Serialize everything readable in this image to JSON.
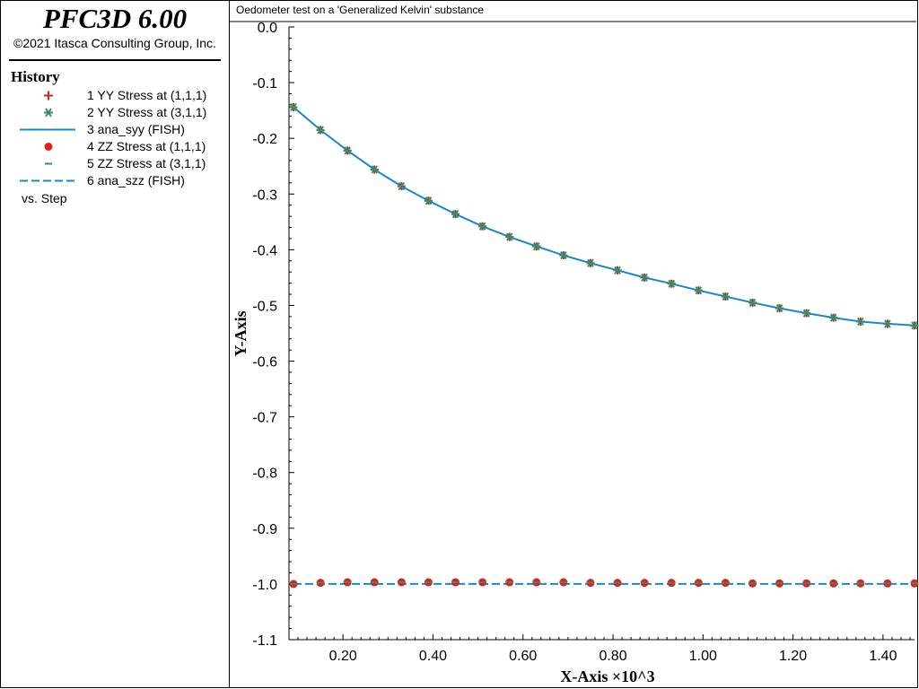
{
  "app": {
    "title": "PFC3D 6.00",
    "copyright": "©2021 Itasca Consulting Group, Inc."
  },
  "legend": {
    "title": "History",
    "items": [
      {
        "label": "1 YY Stress at (1,1,1)",
        "symbol": "plus",
        "color": "#e0201b"
      },
      {
        "label": "2 YY Stress at (3,1,1)",
        "symbol": "asterisk",
        "color": "#3a8a6a"
      },
      {
        "label": "3 ana_syy (FISH)",
        "symbol": "solid-line",
        "color": "#1a86d0"
      },
      {
        "label": "4 ZZ Stress at (1,1,1)",
        "symbol": "dot",
        "color": "#e0201b"
      },
      {
        "label": "5 ZZ Stress at (3,1,1)",
        "symbol": "dash",
        "color": "#3a8a6a"
      },
      {
        "label": "6 ana_szz (FISH)",
        "symbol": "dashed-line",
        "color": "#1a86d0"
      }
    ],
    "vs": "vs. Step"
  },
  "plot": {
    "title": "Oedometer test on a 'Generalized Kelvin' substance"
  },
  "chart_data": {
    "type": "line",
    "xlabel": "X-Axis ×10^3",
    "ylabel": "Y-Axis",
    "xlim": [
      0.08,
      1.47
    ],
    "ylim": [
      -1.1,
      0.0
    ],
    "xticks": [
      0.2,
      0.4,
      0.6,
      0.8,
      1.0,
      1.2,
      1.4
    ],
    "xtick_labels": [
      "0.20",
      "0.40",
      "0.60",
      "0.80",
      "1.00",
      "1.20",
      "1.40"
    ],
    "yticks": [
      0.0,
      -0.1,
      -0.2,
      -0.3,
      -0.4,
      -0.5,
      -0.6,
      -0.7,
      -0.8,
      -0.9,
      -1.0,
      -1.1
    ],
    "ytick_labels": [
      "0.0",
      "-0.1",
      "-0.2",
      "-0.3",
      "-0.4",
      "-0.5",
      "-0.6",
      "-0.7",
      "-0.8",
      "-0.9",
      "-1.0",
      "-1.1"
    ],
    "grid": false,
    "legend_position": "left-panel",
    "x": [
      0.09,
      0.15,
      0.21,
      0.27,
      0.33,
      0.39,
      0.45,
      0.51,
      0.57,
      0.63,
      0.69,
      0.75,
      0.81,
      0.87,
      0.93,
      0.99,
      1.05,
      1.11,
      1.17,
      1.23,
      1.29,
      1.35,
      1.41,
      1.47
    ],
    "series": [
      {
        "name": "1 YY Stress at (1,1,1)",
        "marker": "plus",
        "color": "#e0201b",
        "values": [
          -0.144,
          -0.185,
          -0.222,
          -0.256,
          -0.286,
          -0.312,
          -0.336,
          -0.358,
          -0.377,
          -0.394,
          -0.41,
          -0.424,
          -0.437,
          -0.45,
          -0.461,
          -0.473,
          -0.484,
          -0.495,
          -0.505,
          -0.514,
          -0.522,
          -0.529,
          -0.533,
          -0.536
        ]
      },
      {
        "name": "2 YY Stress at (3,1,1)",
        "marker": "asterisk",
        "color": "#3a8a6a",
        "values": [
          -0.144,
          -0.185,
          -0.222,
          -0.256,
          -0.286,
          -0.312,
          -0.336,
          -0.358,
          -0.377,
          -0.394,
          -0.41,
          -0.424,
          -0.437,
          -0.45,
          -0.461,
          -0.473,
          -0.484,
          -0.495,
          -0.505,
          -0.514,
          -0.522,
          -0.529,
          -0.533,
          -0.536
        ]
      },
      {
        "name": "3 ana_syy (FISH)",
        "line": "solid",
        "color": "#1a86d0",
        "values": [
          -0.144,
          -0.185,
          -0.222,
          -0.256,
          -0.286,
          -0.312,
          -0.336,
          -0.358,
          -0.377,
          -0.394,
          -0.41,
          -0.424,
          -0.437,
          -0.45,
          -0.461,
          -0.473,
          -0.484,
          -0.495,
          -0.505,
          -0.514,
          -0.522,
          -0.529,
          -0.533,
          -0.536
        ]
      },
      {
        "name": "4 ZZ Stress at (1,1,1)",
        "marker": "dot",
        "color": "#e0201b",
        "values": [
          -1.0,
          -0.998,
          -0.997,
          -0.997,
          -0.997,
          -0.997,
          -0.997,
          -0.997,
          -0.997,
          -0.997,
          -0.997,
          -0.998,
          -0.998,
          -0.998,
          -0.998,
          -0.998,
          -0.998,
          -0.999,
          -0.999,
          -0.999,
          -0.999,
          -0.999,
          -0.999,
          -0.999
        ]
      },
      {
        "name": "5 ZZ Stress at (3,1,1)",
        "marker": "dash",
        "color": "#3a8a6a",
        "values": [
          -1.0,
          -0.998,
          -0.997,
          -0.997,
          -0.997,
          -0.997,
          -0.997,
          -0.997,
          -0.997,
          -0.997,
          -0.997,
          -0.998,
          -0.998,
          -0.998,
          -0.998,
          -0.998,
          -0.998,
          -0.999,
          -0.999,
          -0.999,
          -0.999,
          -0.999,
          -0.999,
          -0.999
        ]
      },
      {
        "name": "6 ana_szz (FISH)",
        "line": "dashed",
        "color": "#1a86d0",
        "values": [
          -1.0,
          -1.0,
          -1.0,
          -1.0,
          -1.0,
          -1.0,
          -1.0,
          -1.0,
          -1.0,
          -1.0,
          -1.0,
          -1.0,
          -1.0,
          -1.0,
          -1.0,
          -1.0,
          -1.0,
          -1.0,
          -1.0,
          -1.0,
          -1.0,
          -1.0,
          -1.0,
          -1.0
        ]
      }
    ]
  }
}
